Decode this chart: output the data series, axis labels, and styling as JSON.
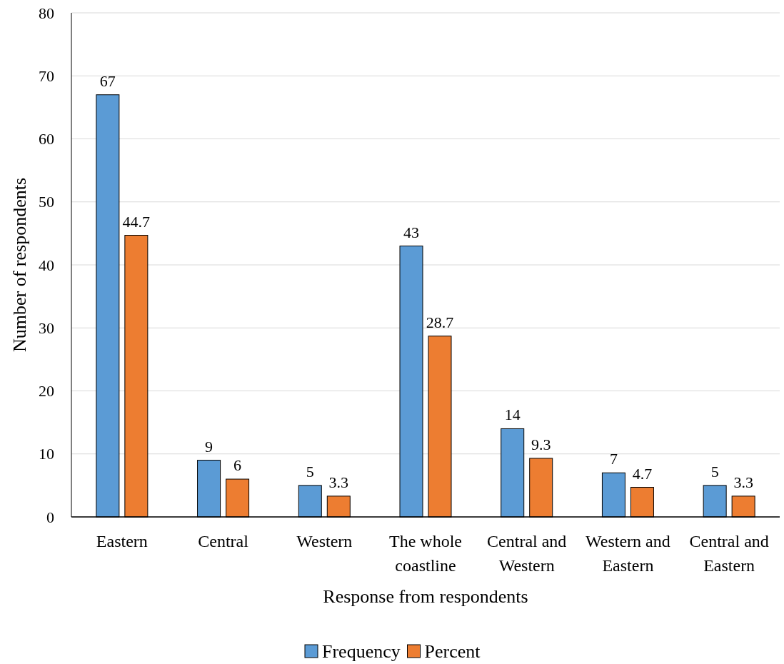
{
  "chart_data": {
    "type": "bar",
    "xlabel": "Response from respondents",
    "ylabel": "Number of respondents",
    "categories": [
      "Eastern",
      "Central",
      "Western",
      "The whole coastline",
      "Central and Western",
      "Western and Eastern",
      "Central and Eastern"
    ],
    "series": [
      {
        "name": "Frequency",
        "color": "#5b9bd5",
        "values": [
          67,
          9,
          5,
          43,
          14,
          7,
          5
        ]
      },
      {
        "name": "Percent",
        "color": "#ed7d31",
        "values": [
          44.7,
          6,
          3.3,
          28.7,
          9.3,
          4.7,
          3.3
        ]
      }
    ],
    "ylim": [
      0,
      80
    ],
    "yticks": [
      0,
      10,
      20,
      30,
      40,
      50,
      60,
      70,
      80
    ],
    "grid": "y",
    "legend": "bottom",
    "data_labels": true
  }
}
